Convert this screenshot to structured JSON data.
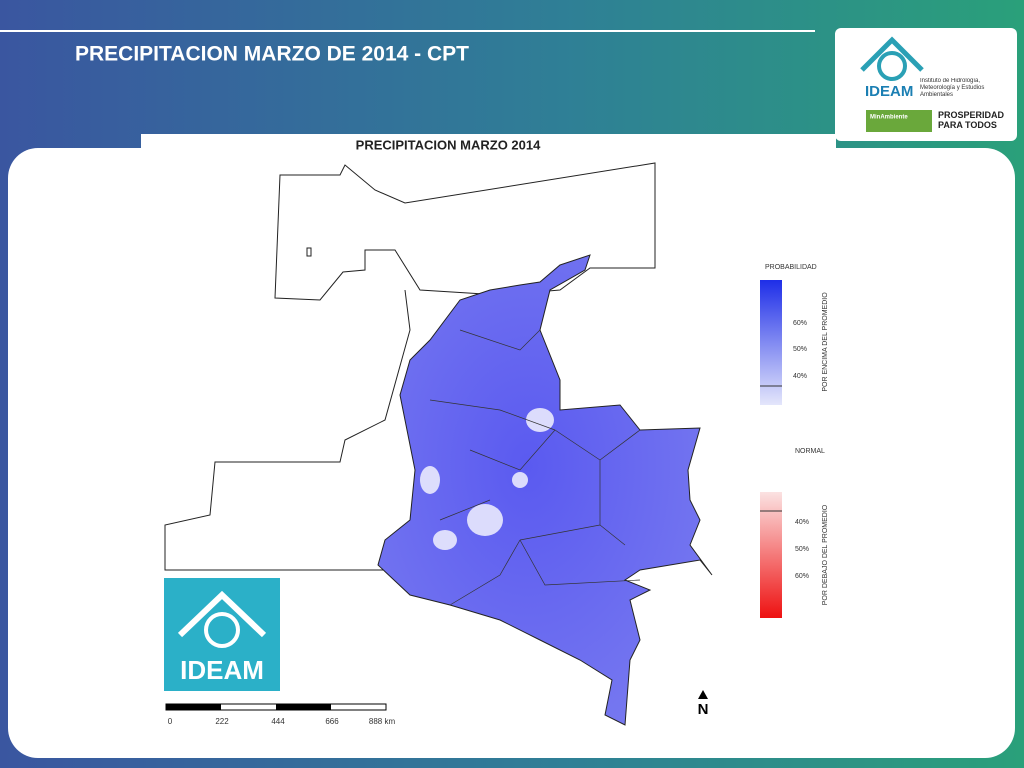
{
  "header": {
    "title": "PRECIPITACION MARZO DE 2014 - CPT"
  },
  "logo": {
    "brand": "IDEAM",
    "institute": "Instituto de Hidrología, Meteorología y Estudios Ambientales",
    "ministry": "MinAmbiente",
    "slogan": "PROSPERIDAD PARA TODOS"
  },
  "map": {
    "title": "PRECIPITACION MARZO 2014",
    "logo": "IDEAM",
    "north": "N",
    "scale": [
      "0",
      "222",
      "444",
      "666",
      "888 km"
    ]
  },
  "legend": {
    "above": {
      "title": "PROBABILIDAD",
      "caption": "POR ENCIMA DEL PROMEDIO",
      "labels": [
        "60%",
        "50%",
        "40%"
      ]
    },
    "normal": {
      "title": "NORMAL"
    },
    "below": {
      "caption": "POR DEBAJO DEL PROMEDIO",
      "labels": [
        "40%",
        "50%",
        "60%"
      ]
    }
  }
}
